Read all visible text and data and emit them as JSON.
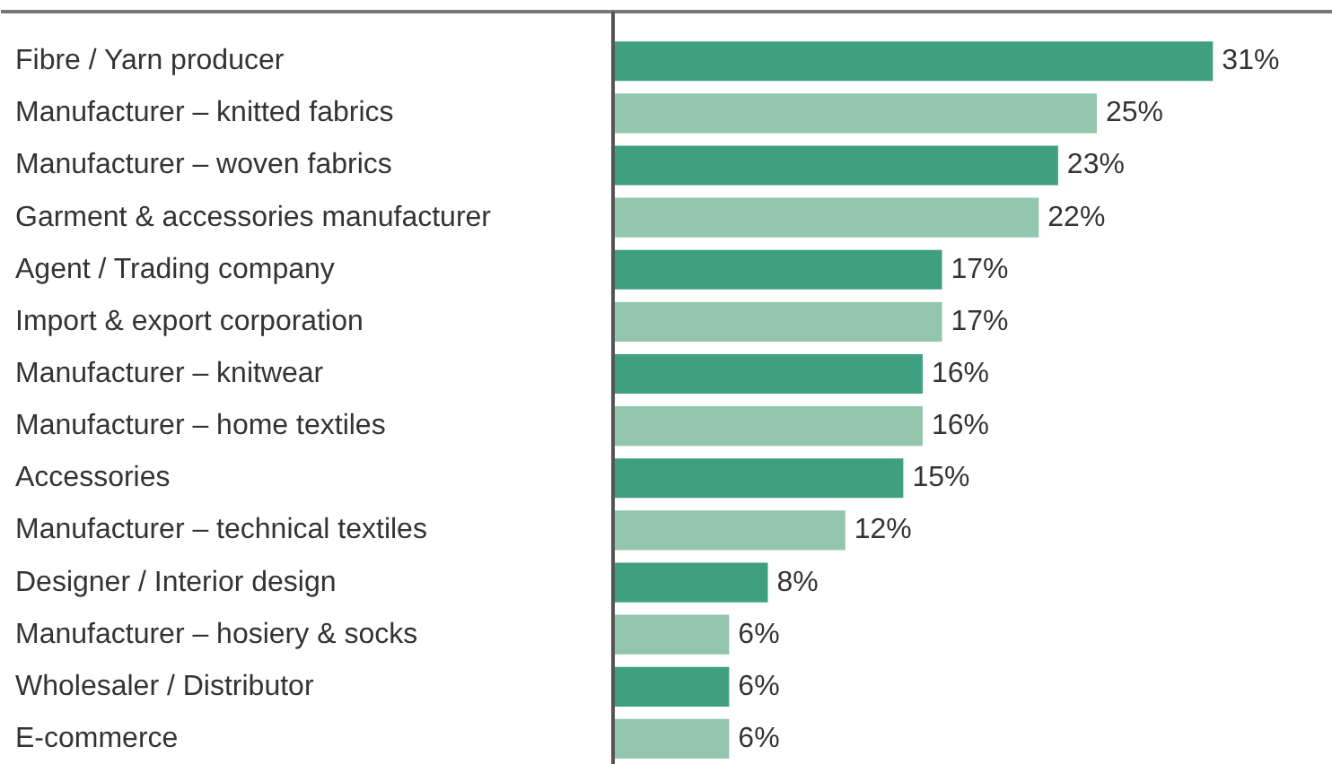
{
  "chart_data": {
    "type": "bar",
    "orientation": "horizontal",
    "categories": [
      "Fibre / Yarn producer",
      "Manufacturer – knitted fabrics",
      "Manufacturer – woven fabrics",
      "Garment & accessories manufacturer",
      "Agent / Trading company",
      "Import & export corporation",
      "Manufacturer – knitwear",
      "Manufacturer – home textiles",
      "Accessories",
      "Manufacturer – technical textiles",
      "Designer / Interior design",
      "Manufacturer – hosiery & socks",
      "Wholesaler / Distributor",
      "E-commerce"
    ],
    "values": [
      31,
      25,
      23,
      22,
      17,
      17,
      16,
      16,
      15,
      12,
      8,
      6,
      6,
      6
    ],
    "value_labels": [
      "31%",
      "25%",
      "23%",
      "22%",
      "17%",
      "17%",
      "16%",
      "16%",
      "15%",
      "12%",
      "8%",
      "6%",
      "6%",
      "6%"
    ],
    "colors": [
      "#3fa080",
      "#93c6ad",
      "#3fa080",
      "#93c6ad",
      "#3fa080",
      "#93c6ad",
      "#3fa080",
      "#93c6ad",
      "#3fa080",
      "#93c6ad",
      "#3fa080",
      "#93c6ad",
      "#3fa080",
      "#93c6ad"
    ]
  }
}
